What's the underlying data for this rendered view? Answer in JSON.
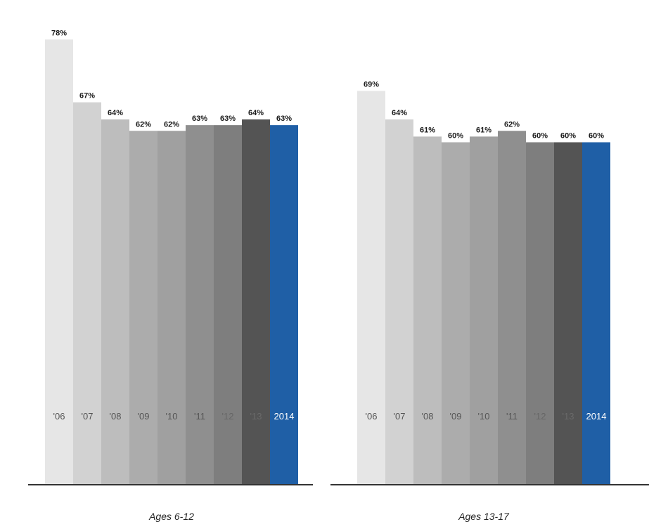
{
  "chart_data": [
    {
      "type": "bar",
      "title": "Ages 6-12",
      "categories": [
        "'06",
        "'07",
        "'08",
        "'09",
        "'10",
        "'11",
        "'12",
        "'13",
        "2014"
      ],
      "values": [
        78,
        67,
        64,
        62,
        62,
        63,
        63,
        64,
        63
      ],
      "value_labels": [
        "78%",
        "67%",
        "64%",
        "62%",
        "62%",
        "63%",
        "63%",
        "64%",
        "63%"
      ],
      "ylim": [
        0,
        80
      ],
      "grid": false,
      "legend": "none"
    },
    {
      "type": "bar",
      "title": "Ages 13-17",
      "categories": [
        "'06",
        "'07",
        "'08",
        "'09",
        "'10",
        "'11",
        "'12",
        "'13",
        "2014"
      ],
      "values": [
        69,
        64,
        61,
        60,
        61,
        62,
        60,
        60,
        60
      ],
      "value_labels": [
        "69%",
        "64%",
        "61%",
        "60%",
        "61%",
        "62%",
        "60%",
        "60%",
        "60%"
      ],
      "ylim": [
        0,
        80
      ],
      "grid": false,
      "legend": "none"
    }
  ],
  "colors": {
    "bars": [
      "#e6e6e6",
      "#d2d2d2",
      "#bdbdbd",
      "#acacac",
      "#a0a0a0",
      "#8f8f8f",
      "#7e7e7e",
      "#545454",
      "#1f5fa6"
    ],
    "category_text": [
      "#555555",
      "#555555",
      "#555555",
      "#555555",
      "#555555",
      "#555555",
      "#666666",
      "#6a6a6a",
      "#ffffff"
    ],
    "baseline": "#333333"
  }
}
